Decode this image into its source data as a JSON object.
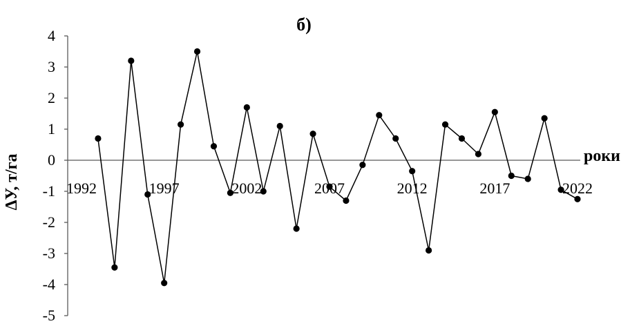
{
  "chart_data": {
    "type": "line",
    "title": "б)",
    "xlabel": "роки",
    "ylabel": "ΔУ, т/га",
    "xlim": [
      1992,
      2022
    ],
    "ylim": [
      -5,
      4
    ],
    "x_ticks": [
      "1992",
      "1997",
      "2002",
      "2007",
      "2012",
      "2017",
      "2022"
    ],
    "y_ticks": [
      "-5",
      "-4",
      "-3",
      "-2",
      "-1",
      "0",
      "1",
      "2",
      "3",
      "4"
    ],
    "grid": false,
    "legend": "none",
    "series": [
      {
        "color": "#000000",
        "marker": "circle",
        "x": [
          1993,
          1994,
          1995,
          1996,
          1997,
          1998,
          1999,
          2000,
          2001,
          2002,
          2003,
          2004,
          2005,
          2006,
          2007,
          2008,
          2009,
          2010,
          2011,
          2012,
          2013,
          2014,
          2015,
          2016,
          2017,
          2018,
          2019,
          2020,
          2021,
          2022
        ],
        "values": [
          0.7,
          -3.45,
          3.2,
          -1.1,
          -3.95,
          1.15,
          3.5,
          0.45,
          -1.05,
          1.7,
          -1.0,
          1.1,
          -2.2,
          0.85,
          -0.85,
          -1.3,
          -0.15,
          1.45,
          0.7,
          -0.35,
          -2.9,
          1.15,
          0.7,
          0.2,
          1.55,
          -0.5,
          -0.6,
          1.35,
          -0.95,
          -1.25
        ]
      }
    ]
  }
}
